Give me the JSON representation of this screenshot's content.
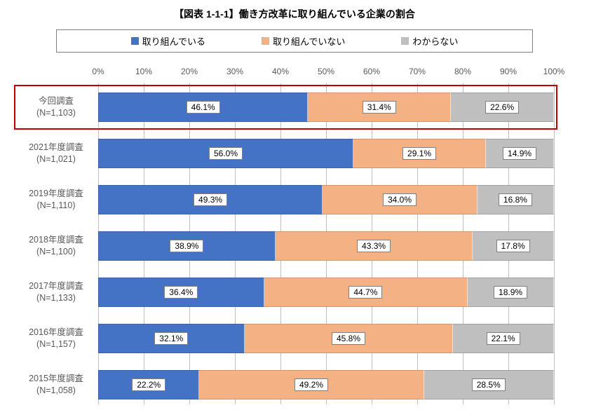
{
  "title": "【図表 1-1-1】働き方改革に取り組んでいる企業の割合",
  "legend": {
    "items": [
      {
        "label": "取り組んでいる",
        "color": "#4472c4"
      },
      {
        "label": "取り組んでいない",
        "color": "#f4b183"
      },
      {
        "label": "わからない",
        "color": "#bfbfbf"
      }
    ],
    "border_color": "#808080"
  },
  "chart": {
    "type": "stacked-horizontal-bar",
    "xlim": [
      0,
      100
    ],
    "xtick_step": 10,
    "xtick_labels": [
      "0%",
      "10%",
      "20%",
      "30%",
      "40%",
      "50%",
      "60%",
      "70%",
      "80%",
      "90%",
      "100%"
    ],
    "grid_color": "#bfbfbf",
    "axis_label_color": "#595959",
    "axis_fontsize": 12,
    "value_box_bg": "#ffffff",
    "value_box_border": "#808080",
    "highlight_border": "#c00000",
    "rows": [
      {
        "label1": "今回調査",
        "label2": "(N=1,103)",
        "highlighted": true,
        "segments": [
          {
            "v": 46.1,
            "t": "46.1%"
          },
          {
            "v": 31.4,
            "t": "31.4%"
          },
          {
            "v": 22.6,
            "t": "22.6%"
          }
        ]
      },
      {
        "label1": "2021年度調査",
        "label2": "(N=1,021)",
        "highlighted": false,
        "segments": [
          {
            "v": 56.0,
            "t": "56.0%"
          },
          {
            "v": 29.1,
            "t": "29.1%"
          },
          {
            "v": 14.9,
            "t": "14.9%"
          }
        ]
      },
      {
        "label1": "2019年度調査",
        "label2": "(N=1,110)",
        "highlighted": false,
        "segments": [
          {
            "v": 49.3,
            "t": "49.3%"
          },
          {
            "v": 34.0,
            "t": "34.0%"
          },
          {
            "v": 16.8,
            "t": "16.8%"
          }
        ]
      },
      {
        "label1": "2018年度調査",
        "label2": "(N=1,100)",
        "highlighted": false,
        "segments": [
          {
            "v": 38.9,
            "t": "38.9%"
          },
          {
            "v": 43.3,
            "t": "43.3%"
          },
          {
            "v": 17.8,
            "t": "17.8%"
          }
        ]
      },
      {
        "label1": "2017年度調査",
        "label2": "(N=1,133)",
        "highlighted": false,
        "segments": [
          {
            "v": 36.4,
            "t": "36.4%"
          },
          {
            "v": 44.7,
            "t": "44.7%"
          },
          {
            "v": 18.9,
            "t": "18.9%"
          }
        ]
      },
      {
        "label1": "2016年度調査",
        "label2": "(N=1,157)",
        "highlighted": false,
        "segments": [
          {
            "v": 32.1,
            "t": "32.1%"
          },
          {
            "v": 45.8,
            "t": "45.8%"
          },
          {
            "v": 22.1,
            "t": "22.1%"
          }
        ]
      },
      {
        "label1": "2015年度調査",
        "label2": "(N=1,058)",
        "highlighted": false,
        "segments": [
          {
            "v": 22.2,
            "t": "22.2%"
          },
          {
            "v": 49.2,
            "t": "49.2%"
          },
          {
            "v": 28.5,
            "t": "28.5%"
          }
        ]
      }
    ]
  }
}
